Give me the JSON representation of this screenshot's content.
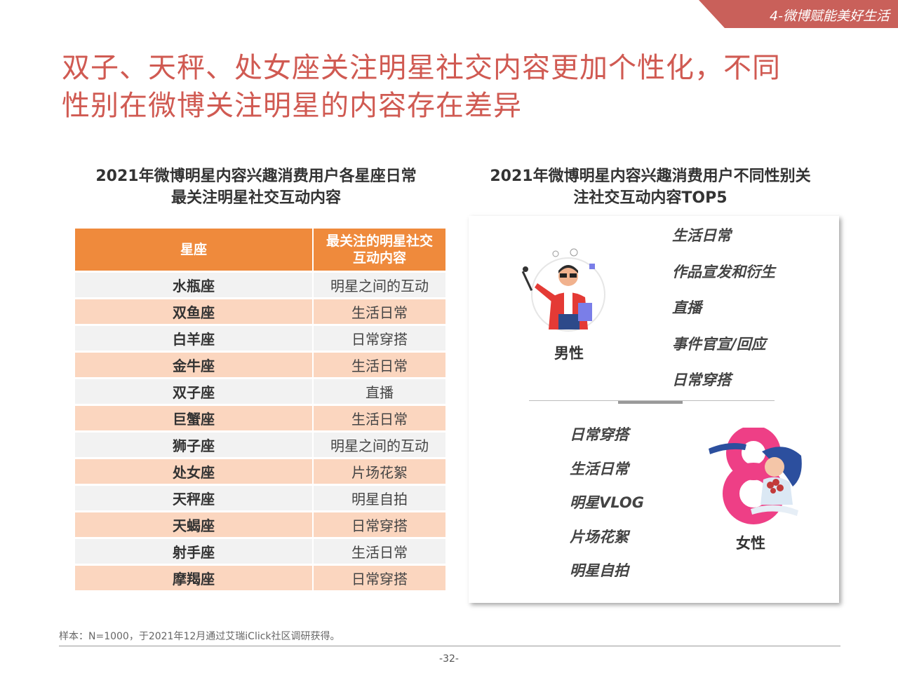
{
  "section_tag": "4-微博赋能美好生活",
  "title": {
    "line1": "双子、天秤、处女座关注明星社交内容更加个性化，不同",
    "line2": "性别在微博关注明星的内容存在差异"
  },
  "left_chart": {
    "subtitle_line1": "2021年微博明星内容兴趣消费用户各星座日常",
    "subtitle_line2": "最关注明星社交互动内容",
    "header_col1": "星座",
    "header_col2": "最关注的明星社交互动内容",
    "rows": [
      {
        "sign": "水瓶座",
        "content": "明星之间的互动"
      },
      {
        "sign": "双鱼座",
        "content": "生活日常"
      },
      {
        "sign": "白羊座",
        "content": "日常穿搭"
      },
      {
        "sign": "金牛座",
        "content": "生活日常"
      },
      {
        "sign": "双子座",
        "content": "直播"
      },
      {
        "sign": "巨蟹座",
        "content": "生活日常"
      },
      {
        "sign": "狮子座",
        "content": "明星之间的互动"
      },
      {
        "sign": "处女座",
        "content": "片场花絮"
      },
      {
        "sign": "天秤座",
        "content": "明星自拍"
      },
      {
        "sign": "天蝎座",
        "content": "日常穿搭"
      },
      {
        "sign": "射手座",
        "content": "生活日常"
      },
      {
        "sign": "摩羯座",
        "content": "日常穿搭"
      }
    ]
  },
  "right_chart": {
    "subtitle_line1": "2021年微博明星内容兴趣消费用户不同性别关",
    "subtitle_line2": "注社交互动内容TOP5",
    "male_label": "男性",
    "female_label": "女性",
    "male_top5": [
      "生活日常",
      "作品宣发和衍生",
      "直播",
      "事件官宣/回应",
      "日常穿搭"
    ],
    "female_top5": [
      "日常穿搭",
      "生活日常",
      "明星VLOG",
      "片场花絮",
      "明星自拍"
    ],
    "male_icon": "man-presenter-icon",
    "female_icon": "woman-with-flowers-icon"
  },
  "footnote": "样本：N=1000，于2021年12月通过艾瑞iClick社区调研获得。",
  "page_number": "-32-",
  "colors": {
    "title": "#d05a52",
    "table_header": "#ef8a3c",
    "row_even": "#fbd6bf",
    "row_odd": "#f2f2f2",
    "tag_bg": "#c9605a"
  }
}
